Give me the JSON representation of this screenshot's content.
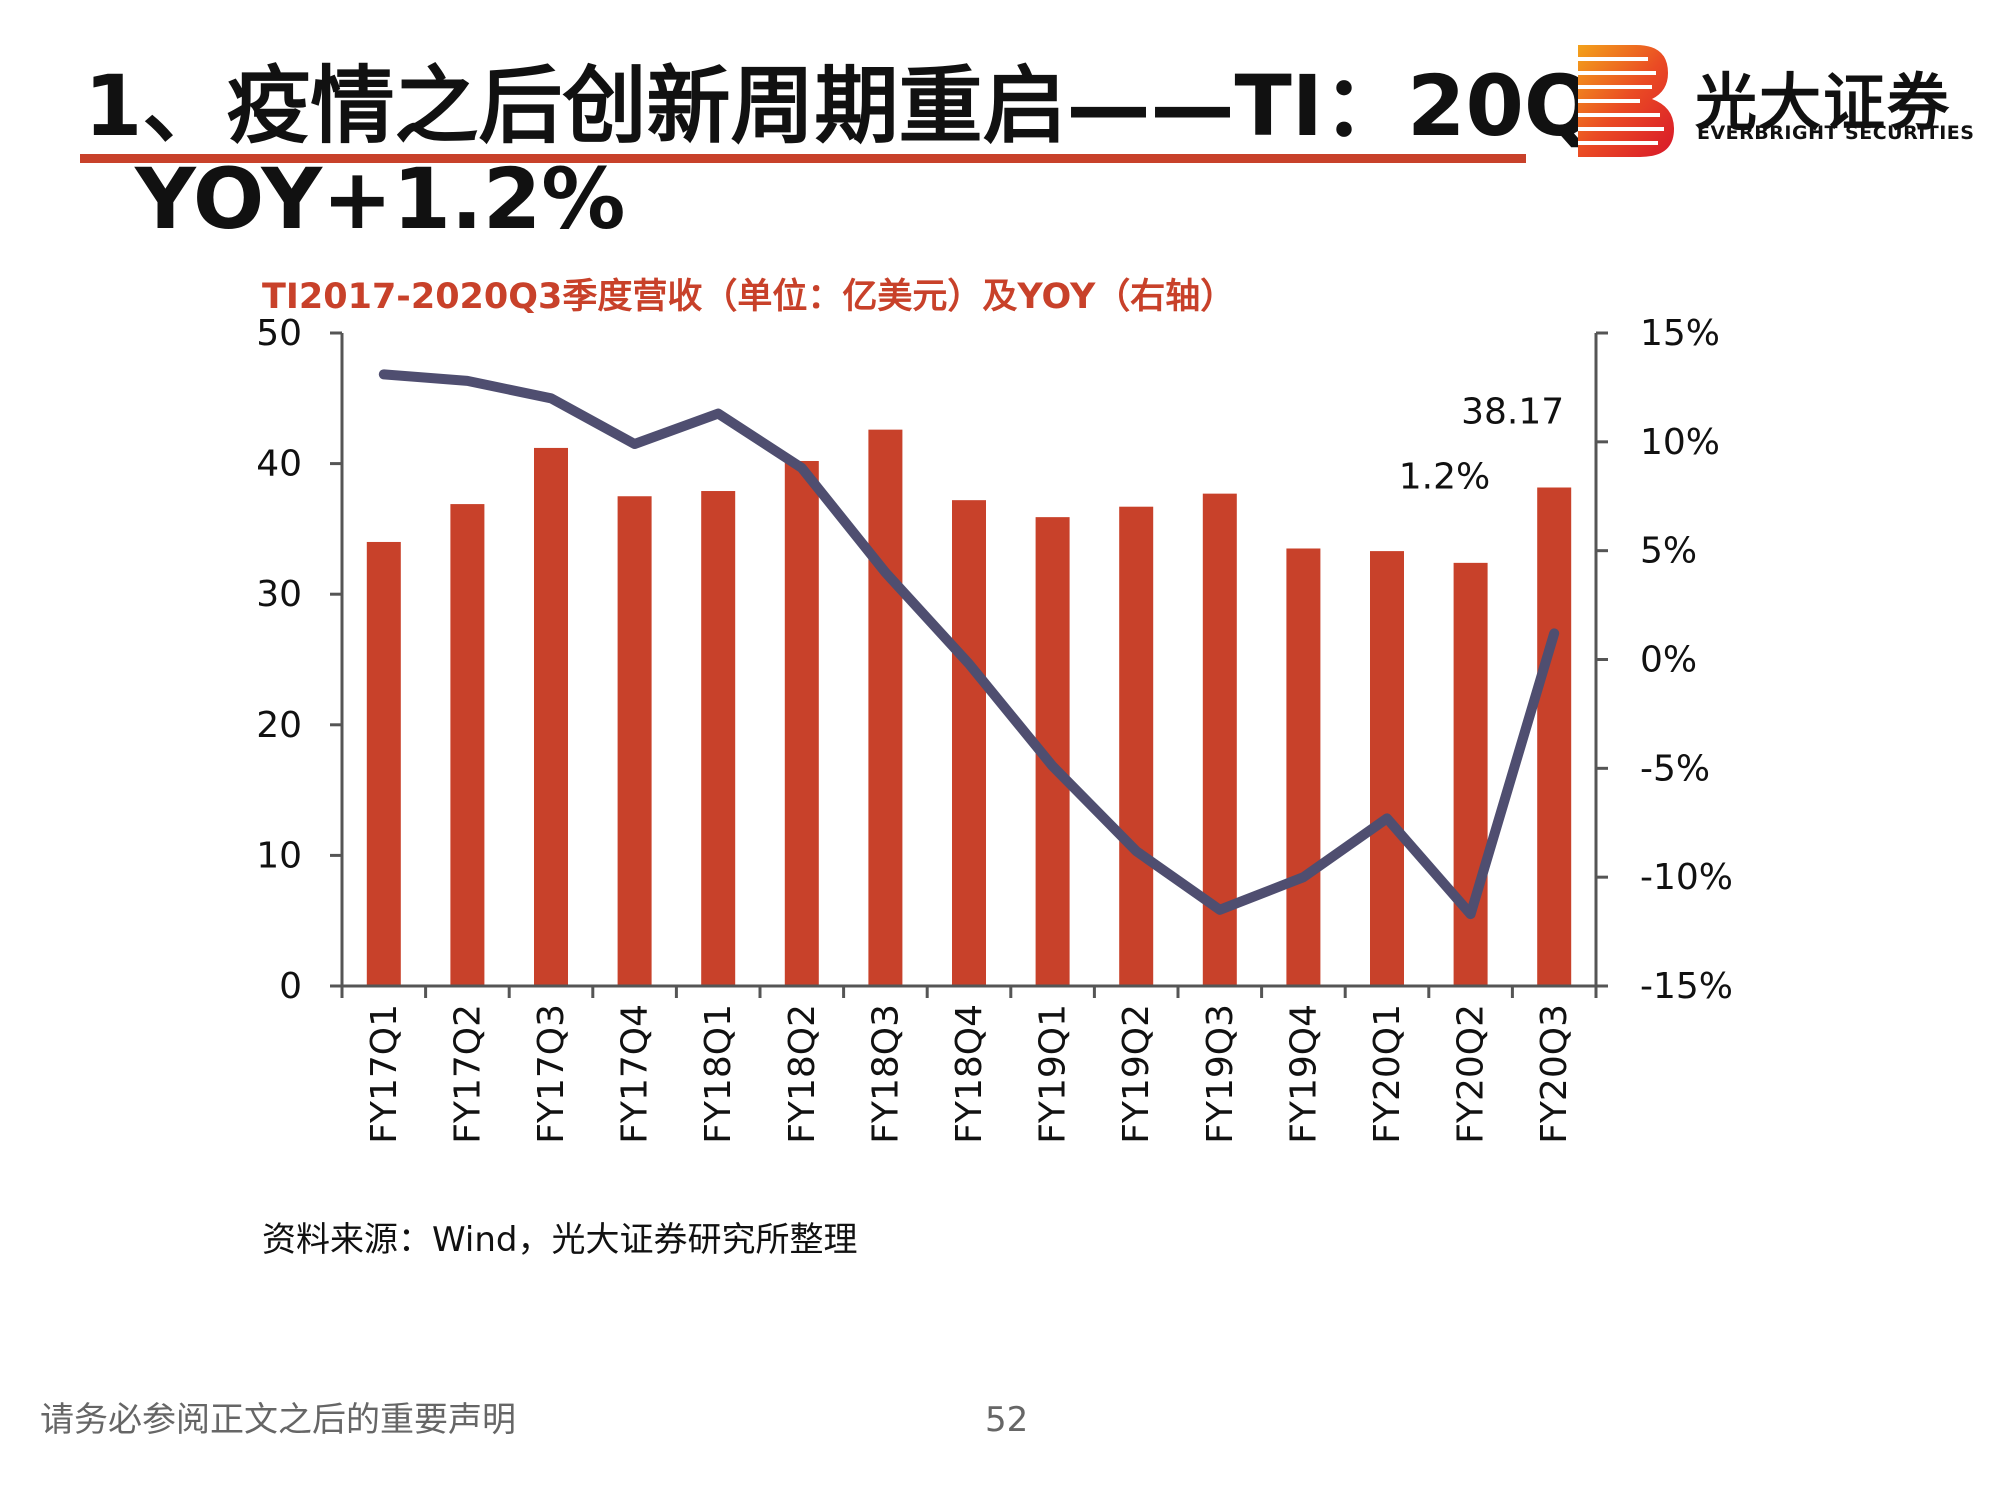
{
  "header": {
    "title_line1": "1、疫情之后创新周期重启——TI：20Q3",
    "title_line2": "YOY+1.2%"
  },
  "logo": {
    "name": "光大证券",
    "subtitle": "EVERBRIGHT SECURITIES"
  },
  "colors": {
    "accent": "#c8412a",
    "bar": "#c8412a",
    "line": "#4f4e70",
    "axis": "#555555"
  },
  "chart_data": {
    "type": "bar",
    "title": "TI2017-2020Q3季度营收（单位：亿美元）及YOY（右轴）",
    "categories": [
      "FY17Q1",
      "FY17Q2",
      "FY17Q3",
      "FY17Q4",
      "FY18Q1",
      "FY18Q2",
      "FY18Q3",
      "FY18Q4",
      "FY19Q1",
      "FY19Q2",
      "FY19Q3",
      "FY19Q4",
      "FY20Q1",
      "FY20Q2",
      "FY20Q3"
    ],
    "series": [
      {
        "axis": "left",
        "type": "bar",
        "values": [
          34.0,
          36.9,
          41.2,
          37.5,
          37.9,
          40.2,
          42.6,
          37.2,
          35.9,
          36.7,
          37.7,
          33.5,
          33.3,
          32.4,
          38.17
        ]
      },
      {
        "axis": "right",
        "type": "line",
        "values": [
          0.131,
          0.128,
          0.12,
          0.099,
          0.113,
          0.088,
          0.04,
          -0.002,
          -0.049,
          -0.088,
          -0.115,
          -0.1,
          -0.073,
          -0.117,
          0.012
        ]
      }
    ],
    "y_left": {
      "min": 0,
      "max": 50,
      "ticks": [
        "0",
        "10",
        "20",
        "30",
        "40",
        "50"
      ]
    },
    "y_right": {
      "min": -0.15,
      "max": 0.15,
      "ticks": [
        "-15%",
        "-10%",
        "-5%",
        "0%",
        "5%",
        "10%",
        "15%"
      ]
    },
    "annotations": [
      {
        "text": "38.17",
        "target": "bar",
        "index": 14
      },
      {
        "text": "1.2%",
        "target": "line",
        "index": 14
      }
    ],
    "grid": false,
    "legend": "none"
  },
  "footer": {
    "source": "资料来源：Wind，光大证券研究所整理",
    "disclaimer": "请务必参阅正文之后的重要声明",
    "page_number": "52"
  }
}
